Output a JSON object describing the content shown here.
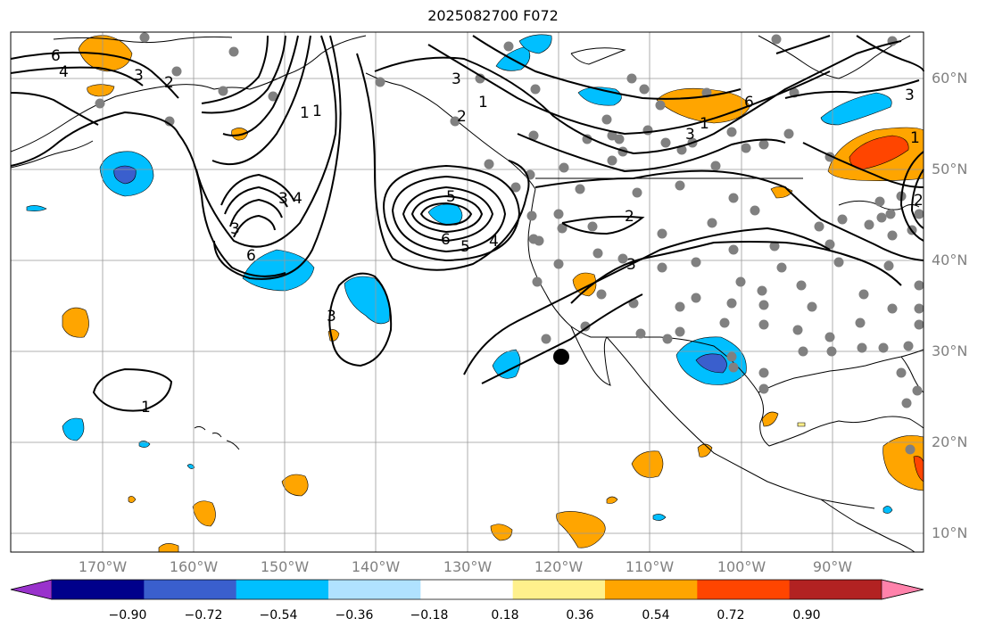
{
  "title": "2025082700 F072",
  "lat_labels": [
    "60°N",
    "50°N",
    "40°N",
    "30°N",
    "20°N",
    "10°N"
  ],
  "lon_labels": [
    "170°W",
    "160°W",
    "150°W",
    "140°W",
    "130°W",
    "120°W",
    "110°W",
    "100°W",
    "90°W"
  ],
  "colorbar": {
    "ticks": [
      "−0.90",
      "−0.72",
      "−0.54",
      "−0.36",
      "−0.18",
      "0.18",
      "0.36",
      "0.54",
      "0.72",
      "0.90"
    ],
    "colors": [
      "#9932cc",
      "#00008b",
      "#3a5fcd",
      "#00bfff",
      "#b0e2ff",
      "#ffffff",
      "#fff08c",
      "#ffa500",
      "#ff4500",
      "#b22222",
      "#ff82ab"
    ]
  },
  "contour_labels": [
    "6",
    "4",
    "3",
    "2",
    "1",
    "1",
    "3",
    "4",
    "3",
    "6",
    "5",
    "6",
    "5",
    "4",
    "3",
    "1",
    "3",
    "2",
    "1",
    "2",
    "3",
    "1",
    "3",
    "6",
    "3",
    "1",
    "2"
  ],
  "shading_colors": {
    "orange": "#ffa500",
    "red": "#ff4500",
    "cyan": "#00bfff",
    "blue": "#3a5fcd",
    "yellow": "#fff08c"
  },
  "storm_marker": {
    "label": "",
    "lat": 29.5,
    "lon": -119.8
  }
}
